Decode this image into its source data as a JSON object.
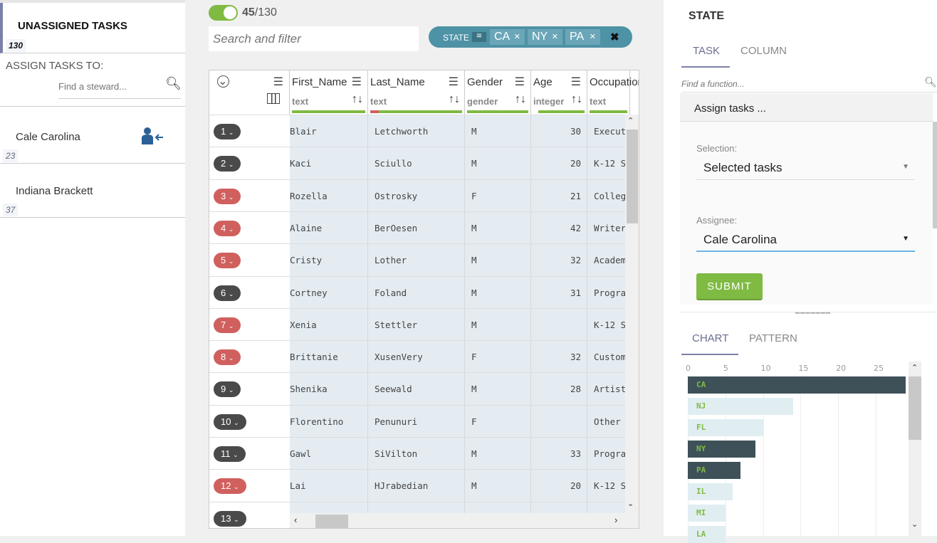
{
  "left": {
    "title": "UNASSIGNED TASKS",
    "count": "130",
    "assign_label": "ASSIGN TASKS TO:",
    "steward_placeholder": "Find a steward...",
    "stewards": [
      {
        "name": "Cale Carolina",
        "count": "23"
      },
      {
        "name": "Indiana Brackett",
        "count": "37"
      }
    ]
  },
  "toolbar": {
    "filtered": "45",
    "total": "/130",
    "search_placeholder": "Search and filter",
    "filter_field": "STATE",
    "filter_values": [
      "CA",
      "NY",
      "PA"
    ],
    "toggle_on": true
  },
  "grid": {
    "columns": [
      {
        "name": "First_Name",
        "type": "text"
      },
      {
        "name": "Last_Name",
        "type": "text"
      },
      {
        "name": "Gender",
        "type": "gender"
      },
      {
        "name": "Age",
        "type": "integer"
      },
      {
        "name": "Occupation",
        "type": "text"
      }
    ],
    "rows": [
      {
        "n": "1",
        "status": "dark",
        "first": "Blair",
        "last": "Letchworth",
        "gender": "M",
        "age": "30",
        "occ": "Execut"
      },
      {
        "n": "2",
        "status": "dark",
        "first": "Kaci",
        "last": "Sciullo",
        "gender": "M",
        "age": "20",
        "occ": "K-12 S"
      },
      {
        "n": "3",
        "status": "red",
        "first": "Rozella",
        "last": "Ostrosky",
        "gender": "F",
        "age": "21",
        "occ": "College"
      },
      {
        "n": "4",
        "status": "red",
        "first": "Alaine",
        "last": "BerOesen",
        "gender": "M",
        "age": "42",
        "occ": "Writer"
      },
      {
        "n": "5",
        "status": "red",
        "first": "Cristy",
        "last": "Lother",
        "gender": "M",
        "age": "32",
        "occ": "Academ"
      },
      {
        "n": "6",
        "status": "dark",
        "first": "Cortney",
        "last": "Foland",
        "gender": "M",
        "age": "31",
        "occ": "Progra"
      },
      {
        "n": "7",
        "status": "red",
        "first": "Xenia",
        "last": "Stettler",
        "gender": "M",
        "age": "",
        "occ": "K-12 S"
      },
      {
        "n": "8",
        "status": "red",
        "first": "Brittanie",
        "last": "XusenVery",
        "gender": "F",
        "age": "32",
        "occ": "Custom"
      },
      {
        "n": "9",
        "status": "dark",
        "first": "Shenika",
        "last": "Seewald",
        "gender": "M",
        "age": "28",
        "occ": "Artist"
      },
      {
        "n": "10",
        "status": "dark",
        "first": "Florentino",
        "last": "Penunuri",
        "gender": "F",
        "age": "",
        "occ": "Other"
      },
      {
        "n": "11",
        "status": "dark",
        "first": "Gawl",
        "last": "SiVilton",
        "gender": "M",
        "age": "33",
        "occ": "Progra"
      },
      {
        "n": "12",
        "status": "red",
        "first": "Lai",
        "last": "HJrabedian",
        "gender": "M",
        "age": "20",
        "occ": "K-12 S"
      },
      {
        "n": "13",
        "status": "dark",
        "first": "",
        "last": "",
        "gender": "",
        "age": "",
        "occ": ""
      }
    ]
  },
  "right": {
    "title": "STATE",
    "tabs": [
      "TASK",
      "COLUMN"
    ],
    "function_placeholder": "Find a function...",
    "function_title": "Assign tasks ...",
    "selection_label": "Selection:",
    "selection_value": "Selected tasks",
    "assignee_label": "Assignee:",
    "assignee_value": "Cale Carolina",
    "submit": "SUBMIT",
    "bottom_tabs": [
      "CHART",
      "PATTERN"
    ]
  },
  "colors": {
    "accent_green": "#7fba42",
    "badge_dark": "#4a4a4a",
    "badge_red": "#d0605e",
    "filter_pill": "#4e92a6",
    "selected_bar": "#3e5159",
    "unselected_bar": "#e0eef2"
  },
  "chart_data": {
    "type": "bar",
    "orientation": "horizontal",
    "categories": [
      "CA",
      "NJ",
      "FL",
      "NY",
      "PA",
      "IL",
      "MI",
      "LA"
    ],
    "values": [
      29,
      14,
      10,
      9,
      7,
      6,
      5,
      5
    ],
    "selected": [
      "CA",
      "NY",
      "PA"
    ],
    "xticks": [
      0,
      5,
      10,
      15,
      20,
      25
    ],
    "xlim": [
      0,
      29
    ],
    "grid": true
  }
}
